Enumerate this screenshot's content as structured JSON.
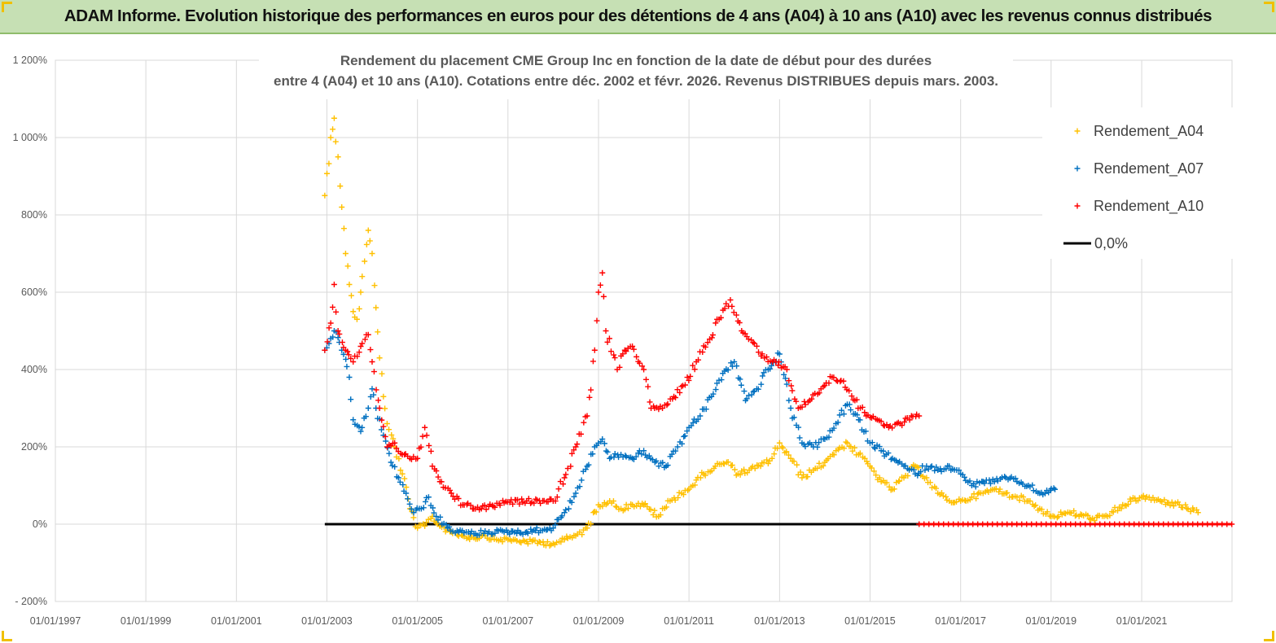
{
  "banner": {
    "title": "ADAM Informe. Evolution historique des performances en euros pour des détentions de 4 ans (A04) à 10 ans (A10) avec les revenus connus distribués"
  },
  "colors": {
    "banner_bg": "#c6e0b4",
    "a04": "#ffc000",
    "a07": "#0070c0",
    "a10": "#ff0000",
    "zero_line": "#000000"
  },
  "chart_data": {
    "type": "scatter",
    "title_lines": [
      "Rendement du placement CME Group Inc en fonction de la date de début pour des durées",
      "entre 4 (A04) et 10 ans (A10). Cotations entre déc. 2002 et févr. 2026. Revenus DISTRIBUES depuis mars. 2003."
    ],
    "x_range": [
      "1997-01-01",
      "2022-12-31"
    ],
    "x_ticks": [
      "01/01/1997",
      "01/01/1999",
      "01/01/2001",
      "01/01/2003",
      "01/01/2005",
      "01/01/2007",
      "01/01/2009",
      "01/01/2011",
      "01/01/2013",
      "01/01/2015",
      "01/01/2017",
      "01/01/2019",
      "01/01/2021"
    ],
    "y_range": [
      -200,
      1200
    ],
    "y_ticks": [
      {
        "value": -200,
        "label": "- 200%"
      },
      {
        "value": 0,
        "label": "0%"
      },
      {
        "value": 200,
        "label": "200%"
      },
      {
        "value": 400,
        "label": "400%"
      },
      {
        "value": 600,
        "label": "600%"
      },
      {
        "value": 800,
        "label": "800%"
      },
      {
        "value": 1000,
        "label": "1 000%"
      },
      {
        "value": 1200,
        "label": "1 200%"
      }
    ],
    "grid": true,
    "legend_position": "top-right",
    "series": [
      {
        "name": "Rendement_A04",
        "color": "#ffc000",
        "marker": "+",
        "points": [
          [
            "2002-12-15",
            850
          ],
          [
            "2003-02-01",
            1000
          ],
          [
            "2003-03-01",
            1050
          ],
          [
            "2003-04-01",
            950
          ],
          [
            "2003-05-01",
            820
          ],
          [
            "2003-06-01",
            700
          ],
          [
            "2003-07-01",
            620
          ],
          [
            "2003-08-01",
            550
          ],
          [
            "2003-09-01",
            530
          ],
          [
            "2003-10-01",
            600
          ],
          [
            "2003-11-01",
            680
          ],
          [
            "2003-12-01",
            760
          ],
          [
            "2004-01-01",
            700
          ],
          [
            "2004-02-01",
            560
          ],
          [
            "2004-03-01",
            430
          ],
          [
            "2004-04-01",
            330
          ],
          [
            "2004-05-01",
            260
          ],
          [
            "2004-07-01",
            200
          ],
          [
            "2004-09-01",
            130
          ],
          [
            "2004-11-01",
            40
          ],
          [
            "2005-01-01",
            -10
          ],
          [
            "2005-03-01",
            -5
          ],
          [
            "2005-05-01",
            20
          ],
          [
            "2005-07-01",
            -5
          ],
          [
            "2005-10-01",
            -20
          ],
          [
            "2006-01-01",
            -30
          ],
          [
            "2006-04-01",
            -35
          ],
          [
            "2006-07-01",
            -30
          ],
          [
            "2006-10-01",
            -40
          ],
          [
            "2007-01-01",
            -40
          ],
          [
            "2007-06-01",
            -45
          ],
          [
            "2008-01-01",
            -50
          ],
          [
            "2008-04-01",
            -40
          ],
          [
            "2008-07-01",
            -30
          ],
          [
            "2008-10-01",
            -10
          ],
          [
            "2009-01-01",
            50
          ],
          [
            "2009-04-01",
            60
          ],
          [
            "2009-07-01",
            40
          ],
          [
            "2009-10-01",
            50
          ],
          [
            "2010-01-01",
            50
          ],
          [
            "2010-05-01",
            20
          ],
          [
            "2010-08-01",
            60
          ],
          [
            "2010-11-01",
            80
          ],
          [
            "2011-02-01",
            100
          ],
          [
            "2011-05-01",
            130
          ],
          [
            "2011-08-01",
            150
          ],
          [
            "2011-11-01",
            160
          ],
          [
            "2012-02-01",
            130
          ],
          [
            "2012-05-01",
            140
          ],
          [
            "2012-08-01",
            150
          ],
          [
            "2012-11-01",
            170
          ],
          [
            "2013-01-01",
            210
          ],
          [
            "2013-04-01",
            170
          ],
          [
            "2013-07-01",
            120
          ],
          [
            "2013-10-01",
            140
          ],
          [
            "2014-01-01",
            160
          ],
          [
            "2014-04-01",
            190
          ],
          [
            "2014-07-01",
            210
          ],
          [
            "2014-10-01",
            180
          ],
          [
            "2015-01-01",
            150
          ],
          [
            "2015-04-01",
            110
          ],
          [
            "2015-07-01",
            90
          ],
          [
            "2015-10-01",
            120
          ],
          [
            "2016-01-01",
            150
          ],
          [
            "2016-04-01",
            120
          ],
          [
            "2016-07-01",
            80
          ],
          [
            "2016-10-01",
            60
          ],
          [
            "2017-01-01",
            60
          ],
          [
            "2017-04-01",
            70
          ],
          [
            "2017-07-01",
            80
          ],
          [
            "2017-10-01",
            90
          ],
          [
            "2018-01-01",
            80
          ],
          [
            "2018-04-01",
            70
          ],
          [
            "2018-07-01",
            60
          ],
          [
            "2018-10-01",
            40
          ],
          [
            "2019-01-01",
            20
          ],
          [
            "2019-06-01",
            30
          ],
          [
            "2019-12-01",
            15
          ],
          [
            "2020-04-01",
            20
          ],
          [
            "2020-08-01",
            50
          ],
          [
            "2021-01-01",
            70
          ],
          [
            "2021-06-01",
            60
          ],
          [
            "2021-11-01",
            50
          ],
          [
            "2022-04-01",
            30
          ]
        ]
      },
      {
        "name": "Rendement_A07",
        "color": "#0070c0",
        "marker": "+",
        "points": [
          [
            "2002-12-15",
            450
          ],
          [
            "2003-02-01",
            480
          ],
          [
            "2003-03-01",
            500
          ],
          [
            "2003-05-01",
            450
          ],
          [
            "2003-07-01",
            380
          ],
          [
            "2003-08-01",
            270
          ],
          [
            "2003-10-01",
            240
          ],
          [
            "2003-12-01",
            300
          ],
          [
            "2004-01-01",
            350
          ],
          [
            "2004-02-01",
            300
          ],
          [
            "2004-04-01",
            230
          ],
          [
            "2004-06-01",
            160
          ],
          [
            "2004-08-01",
            120
          ],
          [
            "2004-10-01",
            80
          ],
          [
            "2004-12-01",
            30
          ],
          [
            "2005-02-01",
            40
          ],
          [
            "2005-04-01",
            70
          ],
          [
            "2005-06-01",
            20
          ],
          [
            "2005-09-01",
            -10
          ],
          [
            "2005-12-01",
            -20
          ],
          [
            "2006-04-01",
            -25
          ],
          [
            "2006-08-01",
            -20
          ],
          [
            "2006-12-01",
            -20
          ],
          [
            "2007-06-01",
            -20
          ],
          [
            "2008-01-01",
            -10
          ],
          [
            "2008-04-01",
            30
          ],
          [
            "2008-07-01",
            80
          ],
          [
            "2008-10-01",
            150
          ],
          [
            "2008-12-01",
            200
          ],
          [
            "2009-02-01",
            220
          ],
          [
            "2009-04-01",
            170
          ],
          [
            "2009-07-01",
            180
          ],
          [
            "2009-10-01",
            170
          ],
          [
            "2010-01-01",
            190
          ],
          [
            "2010-04-01",
            160
          ],
          [
            "2010-07-01",
            150
          ],
          [
            "2010-10-01",
            200
          ],
          [
            "2011-01-01",
            250
          ],
          [
            "2011-04-01",
            280
          ],
          [
            "2011-07-01",
            330
          ],
          [
            "2011-10-01",
            390
          ],
          [
            "2012-01-01",
            420
          ],
          [
            "2012-04-01",
            320
          ],
          [
            "2012-07-01",
            350
          ],
          [
            "2012-10-01",
            400
          ],
          [
            "2013-01-01",
            440
          ],
          [
            "2013-04-01",
            300
          ],
          [
            "2013-07-01",
            210
          ],
          [
            "2013-10-01",
            200
          ],
          [
            "2014-01-01",
            220
          ],
          [
            "2014-04-01",
            260
          ],
          [
            "2014-07-01",
            310
          ],
          [
            "2014-10-01",
            270
          ],
          [
            "2015-01-01",
            210
          ],
          [
            "2015-04-01",
            190
          ],
          [
            "2015-07-01",
            170
          ],
          [
            "2015-10-01",
            150
          ],
          [
            "2016-01-01",
            130
          ],
          [
            "2016-04-01",
            150
          ],
          [
            "2016-07-01",
            140
          ],
          [
            "2016-10-01",
            150
          ],
          [
            "2017-01-01",
            130
          ],
          [
            "2017-04-01",
            100
          ],
          [
            "2017-07-01",
            110
          ],
          [
            "2017-10-01",
            110
          ],
          [
            "2018-01-01",
            120
          ],
          [
            "2018-04-01",
            110
          ],
          [
            "2018-07-01",
            100
          ],
          [
            "2018-10-01",
            80
          ],
          [
            "2019-02-01",
            90
          ]
        ]
      },
      {
        "name": "Rendement_A10",
        "color": "#ff0000",
        "marker": "+",
        "points": [
          [
            "2002-12-15",
            450
          ],
          [
            "2003-02-01",
            520
          ],
          [
            "2003-03-01",
            620
          ],
          [
            "2003-04-01",
            500
          ],
          [
            "2003-06-01",
            450
          ],
          [
            "2003-08-01",
            420
          ],
          [
            "2003-10-01",
            460
          ],
          [
            "2003-12-01",
            490
          ],
          [
            "2004-01-01",
            420
          ],
          [
            "2004-03-01",
            300
          ],
          [
            "2004-05-01",
            200
          ],
          [
            "2004-07-01",
            210
          ],
          [
            "2004-09-01",
            180
          ],
          [
            "2004-11-01",
            170
          ],
          [
            "2005-01-01",
            170
          ],
          [
            "2005-03-01",
            250
          ],
          [
            "2005-05-01",
            150
          ],
          [
            "2005-07-01",
            110
          ],
          [
            "2005-10-01",
            80
          ],
          [
            "2006-01-01",
            50
          ],
          [
            "2006-06-01",
            40
          ],
          [
            "2006-12-01",
            55
          ],
          [
            "2007-06-01",
            60
          ],
          [
            "2008-01-01",
            60
          ],
          [
            "2008-04-01",
            120
          ],
          [
            "2008-07-01",
            200
          ],
          [
            "2008-10-01",
            280
          ],
          [
            "2008-12-01",
            450
          ],
          [
            "2009-01-01",
            600
          ],
          [
            "2009-02-01",
            650
          ],
          [
            "2009-03-01",
            500
          ],
          [
            "2009-06-01",
            400
          ],
          [
            "2009-08-01",
            450
          ],
          [
            "2009-10-01",
            460
          ],
          [
            "2010-01-01",
            400
          ],
          [
            "2010-03-01",
            300
          ],
          [
            "2010-06-01",
            300
          ],
          [
            "2010-09-01",
            330
          ],
          [
            "2010-12-01",
            360
          ],
          [
            "2011-03-01",
            420
          ],
          [
            "2011-06-01",
            470
          ],
          [
            "2011-09-01",
            530
          ],
          [
            "2011-12-01",
            580
          ],
          [
            "2012-03-01",
            500
          ],
          [
            "2012-06-01",
            470
          ],
          [
            "2012-09-01",
            430
          ],
          [
            "2012-12-01",
            420
          ],
          [
            "2013-03-01",
            400
          ],
          [
            "2013-06-01",
            300
          ],
          [
            "2013-09-01",
            320
          ],
          [
            "2013-12-01",
            350
          ],
          [
            "2014-03-01",
            380
          ],
          [
            "2014-06-01",
            370
          ],
          [
            "2014-09-01",
            320
          ],
          [
            "2014-12-01",
            280
          ],
          [
            "2015-03-01",
            270
          ],
          [
            "2015-06-01",
            250
          ],
          [
            "2015-09-01",
            260
          ],
          [
            "2015-12-01",
            280
          ],
          [
            "2016-02-01",
            280
          ]
        ]
      }
    ],
    "zero_segments": [
      {
        "name": "0,0%",
        "color": "#000000",
        "from": "2002-12-15",
        "to": "2016-02-01",
        "value": 0
      },
      {
        "name": "A10 zero tail",
        "color": "#ff0000",
        "from": "2016-02-01",
        "to": "2022-12-31",
        "value": 0
      }
    ],
    "legend": [
      {
        "label": "Rendement_A04",
        "color": "#ffc000",
        "marker": "+"
      },
      {
        "label": "Rendement_A07",
        "color": "#0070c0",
        "marker": "+"
      },
      {
        "label": "Rendement_A10",
        "color": "#ff0000",
        "marker": "+"
      },
      {
        "label": "0,0%",
        "color": "#000000",
        "marker": "line"
      }
    ]
  }
}
